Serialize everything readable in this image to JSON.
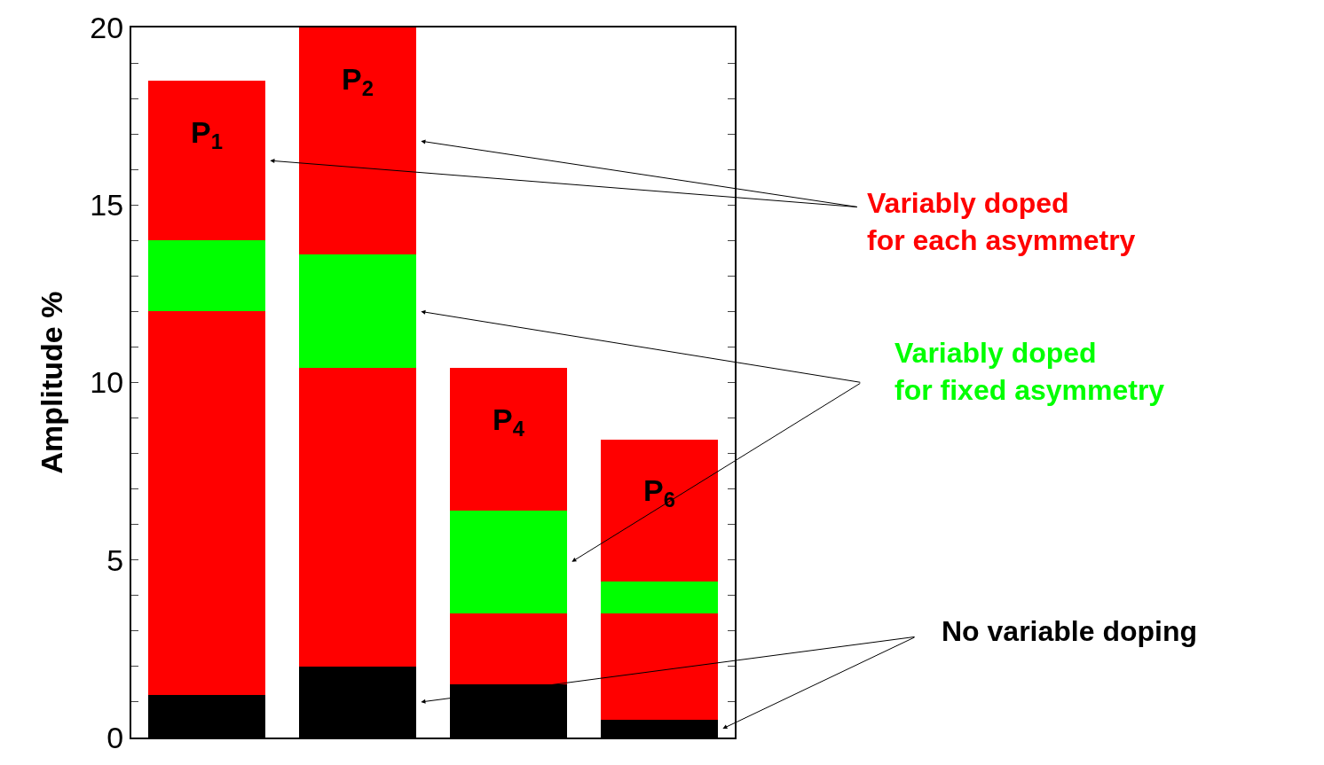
{
  "chart_data": {
    "type": "bar",
    "stacked": true,
    "ylabel": "Amplitude %",
    "categories": [
      "P$_{1}$",
      "P$_{2}$",
      "P$_{4}$",
      "P$_{6}$"
    ],
    "series": [
      {
        "name": "No variable doping",
        "color": "#000000",
        "values": [
          1.2,
          2.0,
          1.5,
          0.5
        ]
      },
      {
        "color": "#ff0000",
        "values": [
          10.8,
          8.4,
          2.0,
          3.0
        ]
      },
      {
        "name": "Variably doped\nfor fixed asymmetry",
        "color": "#00ff00",
        "values": [
          2.0,
          3.2,
          2.9,
          0.9
        ]
      },
      {
        "name": "Variably doped\nfor each asymmetry",
        "color": "#ff0000",
        "values": [
          4.5,
          6.4,
          4.0,
          4.0
        ]
      }
    ],
    "ylim": [
      0,
      20
    ],
    "yticks": [
      0,
      {
        "value": 1,
        "label": null
      },
      {
        "value": 2,
        "label": null
      },
      {
        "value": 3,
        "label": null
      },
      {
        "value": 4,
        "label": null
      },
      5,
      {
        "value": 6,
        "label": null
      },
      {
        "value": 7,
        "label": null
      },
      {
        "value": 8,
        "label": null
      },
      {
        "value": 9,
        "label": null
      },
      10,
      {
        "value": 11,
        "label": null
      },
      {
        "value": 12,
        "label": null
      },
      {
        "value": 13,
        "label": null
      },
      {
        "value": 14,
        "label": null
      },
      15,
      {
        "value": 16,
        "label": null
      },
      {
        "value": 17,
        "label": null
      },
      {
        "value": 18,
        "label": null
      },
      {
        "value": 19,
        "label": null
      },
      20
    ],
    "tick_labels": "y"
  }
}
